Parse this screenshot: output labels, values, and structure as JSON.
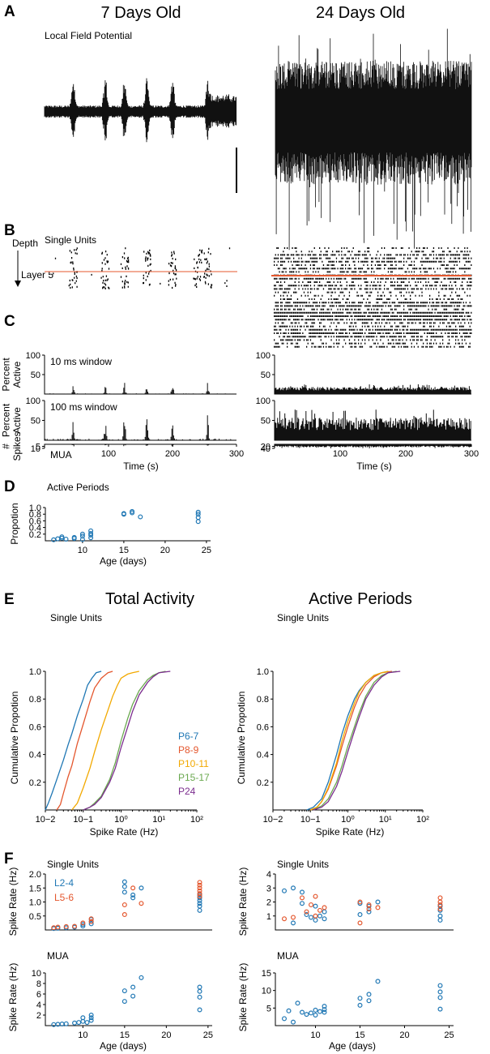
{
  "panel_letters": {
    "A": "A",
    "B": "B",
    "C": "C",
    "D": "D",
    "E": "E",
    "F": "F"
  },
  "colors": {
    "p6_7": "#1f77b4",
    "p8_9": "#e4572e",
    "p10_11": "#f2a900",
    "p15_17": "#6aa84f",
    "p24": "#7b2d8e",
    "L2_4": "#1f77b4",
    "L5_6": "#e4572e",
    "layer_line": "#e4572e"
  },
  "chart_data": [
    {
      "id": "A",
      "type": "line",
      "column_titles": [
        "7 Days Old",
        "24 Days Old"
      ],
      "title": "Local Field Potential",
      "note": "raw LFP traces; 7-day trace shows intermittent bursts, 24-day trace continuous high-amplitude activity",
      "burst_times_s_p7": [
        45,
        95,
        125,
        160,
        200,
        255
      ]
    },
    {
      "id": "B",
      "type": "scatter",
      "title": "Single Units",
      "ylabel": "Depth",
      "layer_label": "Layer 5"
    },
    {
      "id": "C",
      "type": "bar",
      "xlabel": "Time (s)",
      "xlim": [
        0,
        300
      ],
      "xticks": [
        100,
        200,
        300
      ],
      "rows": [
        {
          "label": "10 ms window",
          "ylabel": "Percent Active",
          "ylim_p7": [
            0,
            100
          ],
          "yticks_p7": [
            50,
            100
          ],
          "ylim_p24": [
            0,
            100
          ],
          "yticks_p24": [
            50,
            100
          ],
          "baseline_p24": 12
        },
        {
          "label": "100 ms window",
          "ylabel": "Percent Active",
          "ylim_p7": [
            0,
            100
          ],
          "yticks_p7": [
            50,
            100
          ],
          "ylim_p24": [
            0,
            100
          ],
          "yticks_p24": [
            50,
            100
          ],
          "baseline_p24": 35
        },
        {
          "label": "MUA",
          "ylabel": "# Spikes",
          "ylim_p7": [
            0,
            10
          ],
          "yticks_p7": [
            5,
            10
          ],
          "ylim_p24": [
            0,
            40
          ],
          "yticks_p24": [
            20,
            40
          ],
          "baseline_p24": 18
        }
      ]
    },
    {
      "id": "D",
      "type": "scatter",
      "title": "Active Periods",
      "xlabel": "Age (days)",
      "ylabel": "Propotion",
      "xlim": [
        5.5,
        25.5
      ],
      "ylim": [
        0,
        1.0
      ],
      "xticks": [
        10,
        15,
        20,
        25
      ],
      "yticks": [
        0.2,
        0.4,
        0.6,
        0.8,
        1.0
      ],
      "series": [
        {
          "name": "Active Periods",
          "x": [
            6.5,
            7,
            7.5,
            7.5,
            8,
            9,
            9,
            10,
            10,
            10,
            11,
            11,
            11,
            11,
            15,
            15,
            16,
            16,
            17,
            24,
            24,
            24,
            24
          ],
          "y": [
            0.03,
            0.06,
            0.08,
            0.12,
            0.05,
            0.07,
            0.1,
            0.04,
            0.14,
            0.2,
            0.09,
            0.17,
            0.22,
            0.3,
            0.8,
            0.82,
            0.84,
            0.88,
            0.72,
            0.58,
            0.7,
            0.8,
            0.86
          ]
        }
      ]
    },
    {
      "id": "E",
      "type": "line",
      "titles": [
        "Total Activity",
        "Active Periods"
      ],
      "subtitle": "Single Units",
      "xlabel": "Spike Rate (Hz)",
      "ylabel": "Cumulative Propotion",
      "xscale": "log",
      "xlim": [
        0.01,
        100
      ],
      "ylim": [
        0,
        1.0
      ],
      "xticks": [
        "10−2",
        "10−1",
        "10⁰",
        "10¹",
        "10²"
      ],
      "yticks": [
        0.2,
        0.4,
        0.6,
        0.8,
        1.0
      ],
      "legend": [
        "P6-7",
        "P8-9",
        "P10-11",
        "P15-17",
        "P24"
      ],
      "total_activity": [
        {
          "name": "P6-7",
          "x": [
            0.01,
            0.012,
            0.015,
            0.02,
            0.03,
            0.04,
            0.05,
            0.07,
            0.1,
            0.13,
            0.17,
            0.22,
            0.3
          ],
          "y": [
            0,
            0.05,
            0.12,
            0.22,
            0.36,
            0.47,
            0.55,
            0.68,
            0.8,
            0.9,
            0.95,
            0.99,
            1.0
          ]
        },
        {
          "name": "P8-9",
          "x": [
            0.02,
            0.025,
            0.03,
            0.04,
            0.05,
            0.07,
            0.1,
            0.15,
            0.2,
            0.3,
            0.45,
            0.6
          ],
          "y": [
            0,
            0.04,
            0.12,
            0.24,
            0.32,
            0.48,
            0.62,
            0.78,
            0.88,
            0.95,
            0.99,
            1.0
          ]
        },
        {
          "name": "P10-11",
          "x": [
            0.05,
            0.07,
            0.1,
            0.15,
            0.2,
            0.3,
            0.45,
            0.6,
            0.8,
            1.0,
            1.5,
            2.0,
            3.0
          ],
          "y": [
            0,
            0.05,
            0.16,
            0.3,
            0.42,
            0.58,
            0.72,
            0.82,
            0.9,
            0.95,
            0.98,
            0.99,
            1.0
          ]
        },
        {
          "name": "P15-17",
          "x": [
            0.1,
            0.15,
            0.2,
            0.3,
            0.5,
            0.7,
            1.0,
            1.5,
            2.0,
            3.0,
            5.0,
            7.0,
            10.0,
            15.0
          ],
          "y": [
            0,
            0.02,
            0.05,
            0.1,
            0.22,
            0.34,
            0.5,
            0.66,
            0.76,
            0.86,
            0.94,
            0.97,
            0.99,
            1.0
          ]
        },
        {
          "name": "P24",
          "x": [
            0.1,
            0.15,
            0.2,
            0.3,
            0.5,
            0.7,
            1.0,
            1.5,
            2.0,
            3.0,
            5.0,
            7.0,
            10.0,
            20.0
          ],
          "y": [
            0,
            0.02,
            0.04,
            0.09,
            0.2,
            0.3,
            0.45,
            0.6,
            0.71,
            0.83,
            0.92,
            0.96,
            0.99,
            1.0
          ]
        }
      ],
      "active_periods": [
        {
          "name": "P6-7",
          "x": [
            0.08,
            0.12,
            0.2,
            0.3,
            0.5,
            0.7,
            1.0,
            1.5,
            2.0,
            3.0,
            5.0,
            8.0,
            12.0
          ],
          "y": [
            0,
            0.02,
            0.08,
            0.2,
            0.4,
            0.55,
            0.68,
            0.8,
            0.86,
            0.92,
            0.97,
            0.99,
            1.0
          ]
        },
        {
          "name": "P8-9",
          "x": [
            0.1,
            0.15,
            0.2,
            0.3,
            0.5,
            0.7,
            1.0,
            1.5,
            2.0,
            3.0,
            5.0,
            8.0,
            15.0
          ],
          "y": [
            0,
            0.02,
            0.06,
            0.15,
            0.32,
            0.46,
            0.6,
            0.74,
            0.82,
            0.9,
            0.96,
            0.99,
            1.0
          ]
        },
        {
          "name": "P10-11",
          "x": [
            0.1,
            0.15,
            0.2,
            0.3,
            0.5,
            0.7,
            1.0,
            1.5,
            2.0,
            3.0,
            5.0,
            8.0,
            12.0
          ],
          "y": [
            0,
            0.02,
            0.06,
            0.16,
            0.34,
            0.5,
            0.64,
            0.77,
            0.85,
            0.92,
            0.97,
            0.99,
            1.0
          ]
        },
        {
          "name": "P15-17",
          "x": [
            0.12,
            0.2,
            0.3,
            0.5,
            0.7,
            1.0,
            1.5,
            2.0,
            3.0,
            5.0,
            8.0,
            12.0,
            20.0
          ],
          "y": [
            0,
            0.03,
            0.08,
            0.2,
            0.32,
            0.46,
            0.6,
            0.7,
            0.82,
            0.92,
            0.97,
            0.99,
            1.0
          ]
        },
        {
          "name": "P24",
          "x": [
            0.12,
            0.2,
            0.3,
            0.5,
            0.7,
            1.0,
            1.5,
            2.0,
            3.0,
            5.0,
            8.0,
            12.0,
            25.0
          ],
          "y": [
            0,
            0.02,
            0.06,
            0.17,
            0.28,
            0.42,
            0.57,
            0.67,
            0.8,
            0.9,
            0.96,
            0.99,
            1.0
          ]
        }
      ]
    },
    {
      "id": "F",
      "type": "scatter",
      "xlabel": "Age (days)",
      "ylabel": "Spike Rate (Hz)",
      "legend": [
        "L2-4",
        "L5-6"
      ],
      "xlim": [
        5.5,
        25.5
      ],
      "xticks": [
        10,
        15,
        20,
        25
      ],
      "subplots": [
        {
          "title": "Single Units",
          "ylim": [
            0,
            2.0
          ],
          "yticks": [
            0.5,
            1.0,
            1.5,
            2.0
          ],
          "yticklabels": [
            "0.5",
            "1.0",
            "1.5",
            "2.0"
          ],
          "series": [
            {
              "name": "L2-4",
              "x": [
                6.5,
                7,
                8,
                9,
                10,
                10,
                11,
                11,
                11,
                15,
                15,
                15,
                16,
                16,
                17,
                24,
                24,
                24,
                24,
                24,
                24
              ],
              "y": [
                0.05,
                0.06,
                0.08,
                0.1,
                0.14,
                0.2,
                0.22,
                0.3,
                0.38,
                1.72,
                1.55,
                1.35,
                1.25,
                1.15,
                1.5,
                1.25,
                1.15,
                1.05,
                0.95,
                0.85,
                0.7
              ]
            },
            {
              "name": "L5-6",
              "x": [
                6.5,
                7,
                8,
                9,
                10,
                11,
                11,
                15,
                15,
                16,
                17,
                24,
                24,
                24,
                24,
                24,
                24
              ],
              "y": [
                0.08,
                0.1,
                0.12,
                0.13,
                0.25,
                0.3,
                0.4,
                0.9,
                0.55,
                1.5,
                0.95,
                1.7,
                1.6,
                1.5,
                1.4,
                1.3,
                1.2
              ]
            }
          ]
        },
        {
          "title": "Single Units",
          "ylim": [
            0,
            4
          ],
          "yticks": [
            1,
            2,
            3,
            4
          ],
          "yticklabels": [
            "1",
            "2",
            "3",
            "4"
          ],
          "series": [
            {
              "name": "L2-4",
              "x": [
                6.5,
                7.5,
                7.5,
                8.5,
                8.5,
                9,
                9.5,
                10,
                10,
                10.5,
                11,
                11,
                15,
                15,
                16,
                16,
                17,
                24,
                24,
                24,
                24
              ],
              "y": [
                2.8,
                3.0,
                0.5,
                2.7,
                1.9,
                1.1,
                0.9,
                1.7,
                0.7,
                1.0,
                1.3,
                0.8,
                1.9,
                1.1,
                1.7,
                1.3,
                2.0,
                1.7,
                1.4,
                1.0,
                0.7
              ]
            },
            {
              "name": "L5-6",
              "x": [
                6.5,
                7.5,
                8.5,
                9,
                9.5,
                10,
                10,
                10.5,
                11,
                15,
                15,
                16,
                16,
                17,
                24,
                24,
                24,
                24
              ],
              "y": [
                0.8,
                0.9,
                2.3,
                1.3,
                1.8,
                2.4,
                1.0,
                1.4,
                1.6,
                2.0,
                0.5,
                1.8,
                1.5,
                1.6,
                2.3,
                2.0,
                1.8,
                1.5
              ]
            }
          ]
        },
        {
          "title": "MUA",
          "ylim": [
            0,
            10
          ],
          "yticks": [
            2,
            4,
            6,
            8,
            10
          ],
          "yticklabels": [
            "2",
            "4",
            "6",
            "8",
            "10"
          ],
          "series": [
            {
              "name": "L2-4",
              "x": [
                6.5,
                7,
                7.5,
                8,
                9,
                9.5,
                10,
                10,
                10.5,
                11,
                11,
                11,
                15,
                15,
                16,
                16,
                17,
                24,
                24,
                24,
                24
              ],
              "y": [
                0.2,
                0.25,
                0.3,
                0.35,
                0.5,
                0.6,
                0.8,
                1.5,
                0.6,
                1.0,
                1.5,
                2.0,
                6.6,
                4.6,
                7.3,
                5.6,
                9.1,
                7.3,
                6.5,
                5.4,
                3.0
              ]
            }
          ]
        },
        {
          "title": "MUA",
          "ylim": [
            0,
            15
          ],
          "yticks": [
            5,
            10,
            15
          ],
          "yticklabels": [
            "5",
            "10",
            "15"
          ],
          "series": [
            {
              "name": "L2-4",
              "x": [
                6.5,
                7,
                7.5,
                8,
                8.5,
                9,
                9.5,
                10,
                10,
                10.5,
                11,
                11,
                11,
                15,
                15,
                16,
                16,
                17,
                24,
                24,
                24,
                24
              ],
              "y": [
                2.0,
                4.2,
                1.0,
                6.4,
                3.8,
                3.2,
                3.6,
                4.4,
                3.0,
                4.0,
                5.5,
                4.6,
                3.8,
                7.8,
                5.8,
                8.9,
                7.1,
                12.6,
                11.4,
                9.6,
                8.0,
                4.7
              ]
            }
          ]
        }
      ]
    }
  ]
}
